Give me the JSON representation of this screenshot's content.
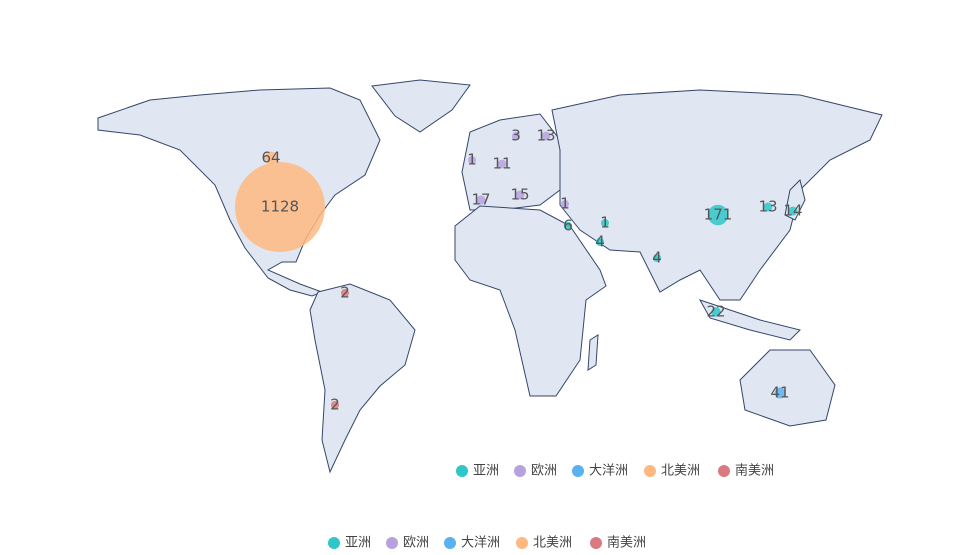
{
  "groups": [
    {
      "name": "亚洲",
      "color": "#2ec7c9",
      "values": [
        171,
        13,
        14,
        1,
        4,
        4,
        6,
        22
      ]
    },
    {
      "name": "欧洲",
      "color": "#b6a2de",
      "values": [
        3,
        13,
        1,
        11,
        17,
        15,
        1
      ]
    },
    {
      "name": "大洋洲",
      "color": "#5ab1ef",
      "values": [
        41
      ]
    },
    {
      "name": "北美洲",
      "color": "#ffb980",
      "values": [
        1128,
        64
      ]
    },
    {
      "name": "南美洲",
      "color": "#d87a80",
      "values": [
        2,
        2
      ]
    }
  ],
  "legend_bottom": [
    "亚洲",
    "欧洲",
    "大洋洲",
    "北美洲",
    "南美洲"
  ]
}
